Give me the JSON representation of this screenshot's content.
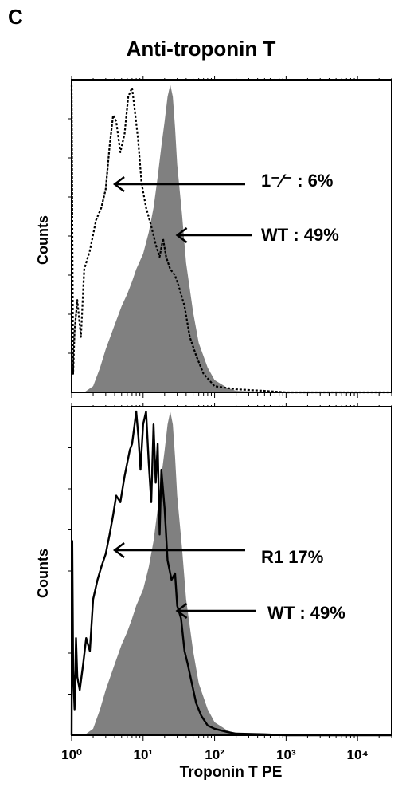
{
  "panel_letter": "C",
  "chart_data": [
    {
      "type": "area",
      "title": "Anti-troponin T",
      "ylabel": "Counts",
      "xlabel": "",
      "x_scale": "log",
      "xlim": [
        1,
        30000
      ],
      "ylim": [
        0,
        100
      ],
      "grid": false,
      "tick_labels_shown": false,
      "series": [
        {
          "style": "filled-gray",
          "color": "#808080",
          "x": [
            1,
            1.5,
            2,
            2.5,
            3,
            4,
            5,
            6,
            7,
            8,
            10,
            12,
            14,
            16,
            18,
            20,
            22,
            24,
            26,
            28,
            30,
            35,
            40,
            50,
            60,
            80,
            100,
            150,
            200,
            500,
            1000,
            30000
          ],
          "y": [
            0,
            0,
            2,
            8,
            14,
            22,
            28,
            32,
            36,
            40,
            45,
            52,
            60,
            70,
            80,
            88,
            96,
            100,
            96,
            86,
            74,
            58,
            42,
            26,
            16,
            8,
            4,
            1.5,
            0.5,
            0.2,
            0,
            0
          ]
        },
        {
          "style": "dashed-outline",
          "color": "#000000",
          "x": [
            1,
            1.05,
            1.1,
            1.2,
            1.35,
            1.5,
            1.8,
            2.2,
            2.6,
            3,
            3.4,
            3.8,
            4.2,
            4.8,
            5.5,
            6.2,
            7,
            7.6,
            8.5,
            9.5,
            11,
            13,
            15,
            17,
            19,
            21,
            24,
            28,
            32,
            38,
            45,
            55,
            70,
            100,
            200,
            500,
            1000,
            30000
          ],
          "y": [
            100,
            6,
            20,
            30,
            18,
            40,
            46,
            56,
            60,
            66,
            80,
            90,
            88,
            78,
            84,
            96,
            99,
            92,
            82,
            68,
            60,
            54,
            48,
            44,
            50,
            44,
            40,
            38,
            34,
            28,
            18,
            12,
            6,
            2,
            1,
            0.5,
            0,
            0
          ]
        }
      ],
      "annotations": [
        {
          "text": "1⁻⁄⁻ : 6%",
          "points_to": {
            "x": 4,
            "y": 66
          }
        },
        {
          "text": "WT : 49%",
          "points_to": {
            "x": 30,
            "y": 52
          }
        }
      ]
    },
    {
      "type": "area",
      "title": "",
      "ylabel": "Counts",
      "xlabel": "Troponin T PE",
      "x_scale": "log",
      "xlim": [
        1,
        30000
      ],
      "ylim": [
        0,
        100
      ],
      "grid": false,
      "xtick_labels": [
        "10⁰",
        "10¹",
        "10²",
        "10³",
        "10⁴"
      ],
      "xticks": [
        1,
        10,
        100,
        1000,
        10000
      ],
      "series": [
        {
          "style": "filled-gray",
          "color": "#808080",
          "x": [
            1,
            1.5,
            2,
            2.5,
            3,
            4,
            5,
            6,
            7,
            8,
            10,
            12,
            14,
            16,
            18,
            20,
            22,
            24,
            26,
            28,
            30,
            35,
            40,
            50,
            60,
            80,
            100,
            150,
            200,
            500,
            1000,
            30000
          ],
          "y": [
            0,
            0,
            2,
            8,
            14,
            22,
            28,
            32,
            36,
            40,
            45,
            52,
            60,
            70,
            80,
            88,
            96,
            100,
            96,
            86,
            74,
            58,
            42,
            26,
            16,
            8,
            4,
            1.5,
            0.5,
            0.2,
            0,
            0
          ]
        },
        {
          "style": "solid-outline",
          "color": "#000000",
          "x": [
            1,
            1.02,
            1.05,
            1.1,
            1.15,
            1.2,
            1.3,
            1.45,
            1.6,
            1.8,
            2,
            2.3,
            2.6,
            3,
            3.4,
            3.8,
            4.2,
            4.8,
            5.5,
            6.5,
            7,
            7.6,
            8,
            8.6,
            9.2,
            10,
            11,
            12,
            13,
            14,
            15,
            16,
            17,
            18,
            20,
            22,
            25,
            28,
            30,
            34,
            38,
            42,
            48,
            55,
            65,
            80,
            100,
            150,
            200,
            500,
            1000,
            30000
          ],
          "y": [
            0,
            60,
            20,
            8,
            30,
            18,
            14,
            22,
            30,
            26,
            42,
            48,
            52,
            56,
            62,
            68,
            74,
            72,
            80,
            88,
            90,
            96,
            100,
            92,
            82,
            96,
            100,
            84,
            72,
            96,
            78,
            90,
            62,
            82,
            70,
            54,
            48,
            50,
            40,
            36,
            26,
            22,
            16,
            10,
            6,
            3,
            2,
            1,
            0.5,
            0.3,
            0,
            0
          ]
        }
      ],
      "annotations": [
        {
          "text": "R1 17%",
          "points_to": {
            "x": 4,
            "y": 48
          }
        },
        {
          "text": "WT : 49%",
          "points_to": {
            "x": 30,
            "y": 32
          }
        }
      ]
    }
  ]
}
